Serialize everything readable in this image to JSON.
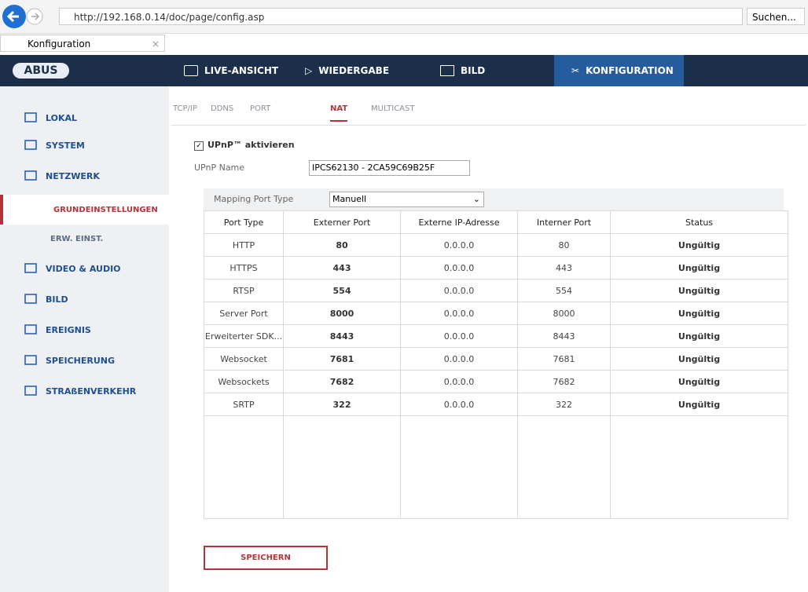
{
  "browser": {
    "url": "http://192.168.0.14/doc/page/config.asp",
    "search": "Suchen...",
    "tab": "Konfiguration"
  },
  "header": {
    "logo": "ABUS",
    "nav": [
      "LIVE-ANSICHT",
      "WIEDERGABE",
      "BILD",
      "KONFIGURATION"
    ]
  },
  "sidebar": {
    "items": [
      "LOKAL",
      "SYSTEM",
      "NETZWERK",
      "GRUNDEINSTELLUNGEN",
      "ERW. EINST.",
      "VIDEO & AUDIO",
      "BILD",
      "EREIGNIS",
      "SPEICHERUNG",
      "STRAßENVERKEHR"
    ]
  },
  "tabs": [
    "TCP/IP",
    "DDNS",
    "PORT",
    "NAT",
    "MULTICAST"
  ],
  "form": {
    "upnp_label": "UPnP™ aktivieren",
    "name_label": "UPnP Name",
    "name_value": "IPCS62130 - 2CA59C69B25F",
    "mapping_label": "Mapping Port Type",
    "mapping_value": "Manuell"
  },
  "table": {
    "headers": [
      "Port Type",
      "Externer Port",
      "Externe IP-Adresse",
      "Interner Port",
      "Status"
    ],
    "rows": [
      [
        "HTTP",
        "80",
        "0.0.0.0",
        "80",
        "Ungültig"
      ],
      [
        "HTTPS",
        "443",
        "0.0.0.0",
        "443",
        "Ungültig"
      ],
      [
        "RTSP",
        "554",
        "0.0.0.0",
        "554",
        "Ungültig"
      ],
      [
        "Server Port",
        "8000",
        "0.0.0.0",
        "8000",
        "Ungültig"
      ],
      [
        "Erweiterter SDK...",
        "8443",
        "0.0.0.0",
        "8443",
        "Ungültig"
      ],
      [
        "Websocket",
        "7681",
        "0.0.0.0",
        "7681",
        "Ungültig"
      ],
      [
        "Websockets",
        "7682",
        "0.0.0.0",
        "7682",
        "Ungültig"
      ],
      [
        "SRTP",
        "322",
        "0.0.0.0",
        "322",
        "Ungültig"
      ]
    ]
  },
  "button": "SPEICHERN"
}
